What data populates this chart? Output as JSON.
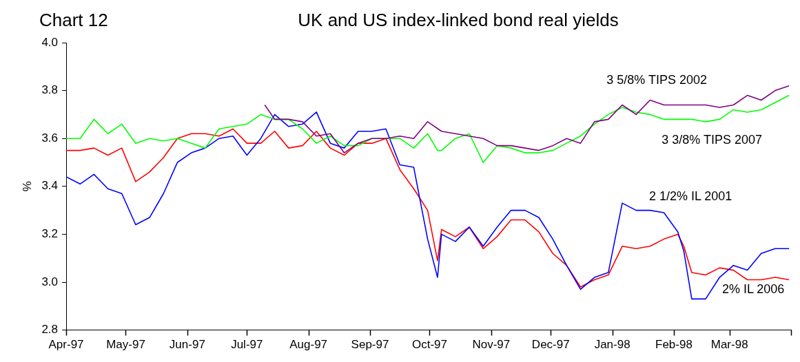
{
  "chart_data": {
    "type": "line",
    "title": "UK and US index-linked bond real yields",
    "ylabel": "%",
    "annotations": [
      "Chart 12"
    ],
    "x": [
      "1997-04-01",
      "1997-04-08",
      "1997-04-15",
      "1997-04-22",
      "1997-04-29",
      "1997-05-06",
      "1997-05-13",
      "1997-05-20",
      "1997-05-27",
      "1997-06-03",
      "1997-06-10",
      "1997-06-17",
      "1997-06-24",
      "1997-07-01",
      "1997-07-08",
      "1997-07-15",
      "1997-07-22",
      "1997-07-29",
      "1997-08-05",
      "1997-08-12",
      "1997-08-19",
      "1997-08-26",
      "1997-09-02",
      "1997-09-09",
      "1997-09-16",
      "1997-09-23",
      "1997-09-30",
      "1997-10-05",
      "1997-10-07",
      "1997-10-14",
      "1997-10-21",
      "1997-10-28",
      "1997-11-04",
      "1997-11-11",
      "1997-11-18",
      "1997-11-25",
      "1997-12-02",
      "1997-12-09",
      "1997-12-16",
      "1997-12-23",
      "1997-12-30",
      "1998-01-06",
      "1998-01-13",
      "1998-01-20",
      "1998-01-27",
      "1998-02-03",
      "1998-02-06",
      "1998-02-10",
      "1998-02-17",
      "1998-02-24",
      "1998-03-03",
      "1998-03-10",
      "1998-03-17",
      "1998-03-24",
      "1998-03-31"
    ],
    "series": [
      {
        "name": "3 5/8% TIPS 2002",
        "color": "#800080",
        "x": [
          "1997-07-10",
          "1997-07-15",
          "1997-07-22",
          "1997-07-29",
          "1997-08-05",
          "1997-08-12",
          "1997-08-19",
          "1997-08-26",
          "1997-09-02",
          "1997-09-09",
          "1997-09-16",
          "1997-09-23",
          "1997-09-30",
          "1997-10-07",
          "1997-10-14",
          "1997-10-21",
          "1997-10-28",
          "1997-11-04",
          "1997-11-11",
          "1997-11-18",
          "1997-11-25",
          "1997-12-02",
          "1997-12-09",
          "1997-12-16",
          "1997-12-23",
          "1997-12-30",
          "1998-01-06",
          "1998-01-13",
          "1998-01-20",
          "1998-01-27",
          "1998-02-03",
          "1998-02-10",
          "1998-02-17",
          "1998-02-24",
          "1998-03-03",
          "1998-03-10",
          "1998-03-17",
          "1998-03-24",
          "1998-03-31"
        ],
        "values": [
          3.74,
          3.68,
          3.68,
          3.67,
          3.61,
          3.62,
          3.54,
          3.58,
          3.6,
          3.6,
          3.61,
          3.6,
          3.67,
          3.63,
          3.62,
          3.61,
          3.6,
          3.57,
          3.57,
          3.56,
          3.55,
          3.57,
          3.6,
          3.58,
          3.67,
          3.68,
          3.74,
          3.7,
          3.76,
          3.74,
          3.74,
          3.74,
          3.74,
          3.73,
          3.74,
          3.78,
          3.76,
          3.8,
          3.82
        ]
      },
      {
        "name": "3 3/8% TIPS 2007",
        "color": "#00ff00",
        "values": [
          3.6,
          3.6,
          3.68,
          3.62,
          3.66,
          3.58,
          3.6,
          3.59,
          3.6,
          3.58,
          3.56,
          3.64,
          3.65,
          3.66,
          3.7,
          3.68,
          3.68,
          3.64,
          3.58,
          3.61,
          3.57,
          3.57,
          3.6,
          3.6,
          3.6,
          3.56,
          3.62,
          3.55,
          3.55,
          3.6,
          3.62,
          3.5,
          3.57,
          3.56,
          3.54,
          3.54,
          3.55,
          3.58,
          3.61,
          3.66,
          3.7,
          3.73,
          3.71,
          3.7,
          3.68,
          3.68,
          3.68,
          3.68,
          3.67,
          3.68,
          3.72,
          3.71,
          3.72,
          3.75,
          3.78
        ]
      },
      {
        "name": "2 1/2% IL 2001",
        "color": "#0000ff",
        "values": [
          3.44,
          3.41,
          3.45,
          3.39,
          3.37,
          3.24,
          3.27,
          3.37,
          3.5,
          3.54,
          3.56,
          3.6,
          3.61,
          3.53,
          3.6,
          3.7,
          3.65,
          3.66,
          3.71,
          3.58,
          3.56,
          3.63,
          3.63,
          3.64,
          3.49,
          3.48,
          3.18,
          3.02,
          3.2,
          3.17,
          3.23,
          3.15,
          3.23,
          3.3,
          3.3,
          3.27,
          3.18,
          3.07,
          2.97,
          3.02,
          3.04,
          3.33,
          3.3,
          3.3,
          3.29,
          3.21,
          3.13,
          2.93,
          2.93,
          3.02,
          3.07,
          3.05,
          3.12,
          3.14,
          3.14
        ]
      },
      {
        "name": "2% IL 2006",
        "color": "#ff0000",
        "values": [
          3.55,
          3.55,
          3.56,
          3.53,
          3.56,
          3.42,
          3.46,
          3.52,
          3.6,
          3.62,
          3.62,
          3.61,
          3.64,
          3.58,
          3.58,
          3.63,
          3.56,
          3.57,
          3.63,
          3.56,
          3.53,
          3.58,
          3.58,
          3.6,
          3.47,
          3.39,
          3.3,
          3.09,
          3.22,
          3.19,
          3.23,
          3.14,
          3.19,
          3.26,
          3.26,
          3.21,
          3.12,
          3.07,
          2.98,
          3.01,
          3.03,
          3.15,
          3.14,
          3.15,
          3.18,
          3.2,
          3.15,
          3.04,
          3.03,
          3.06,
          3.05,
          3.01,
          3.01,
          3.02,
          3.01
        ]
      }
    ],
    "xlim": [
      "1997-04-01",
      "1998-04-01"
    ],
    "xticks": [
      {
        "value": "1997-04-01",
        "label": "Apr-97"
      },
      {
        "value": "1997-05-01",
        "label": "May-97"
      },
      {
        "value": "1997-06-01",
        "label": "Jun-97"
      },
      {
        "value": "1997-07-01",
        "label": "Jul-97"
      },
      {
        "value": "1997-08-01",
        "label": "Aug-97"
      },
      {
        "value": "1997-09-01",
        "label": "Sep-97"
      },
      {
        "value": "1997-10-01",
        "label": "Oct-97"
      },
      {
        "value": "1997-11-01",
        "label": "Nov-97"
      },
      {
        "value": "1997-12-01",
        "label": "Dec-97"
      },
      {
        "value": "1998-01-01",
        "label": "Jan-98"
      },
      {
        "value": "1998-02-01",
        "label": "Feb-98"
      },
      {
        "value": "1998-03-01",
        "label": "Mar-98"
      },
      {
        "value": "1998-04-01",
        "label": null
      }
    ],
    "ylim": [
      2.8,
      4.0
    ],
    "yticks": [
      2.8,
      {
        "value": 3,
        "label": "3.0"
      },
      3.2,
      3.4,
      3.6,
      3.8,
      {
        "value": 4,
        "label": "4.0"
      }
    ],
    "grid": false,
    "legend": false,
    "marker": "none",
    "line_style": "solid"
  }
}
